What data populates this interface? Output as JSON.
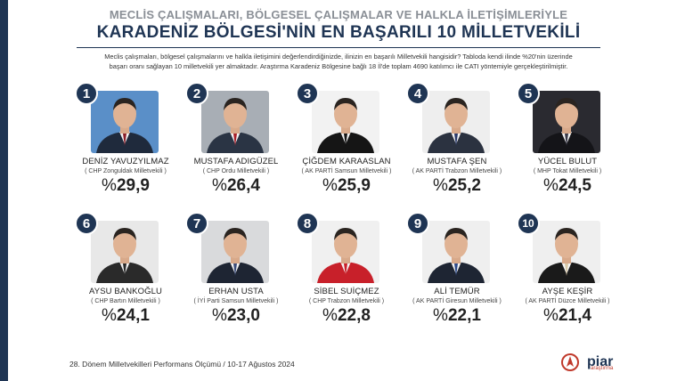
{
  "header": {
    "subtitle": "MECLİS ÇALIŞMALARI, BÖLGESEL ÇALIŞMALAR VE HALKLA İLETİŞİMLERİYLE",
    "title": "KARADENİZ BÖLGESİ'NİN EN BAŞARILI 10 MİLLETVEKİLİ",
    "description_line1": "Meclis çalışmaları, bölgesel çalışmalarını  ve halkla iletişimini değerlendirdiğinizde, ilinizin en başarılı Milletvekili hangisidir? Tabloda kendi ilinde %20'nin üzerinde",
    "description_line2": "başarı oranı sağlayan 10 milletvekili yer almaktadır. Araştırma Karadeniz Bölgesine bağlı 18 İl'de toplam 4690 katılımcı ile  CATI yöntemiyle gerçekleştirilmiştir."
  },
  "accent_color": "#1f3554",
  "percent_sign": "%",
  "deputies": [
    {
      "rank": "1",
      "name": "DENİZ YAVUZYILMAZ",
      "party": "( CHP Zonguldak Milletvekili )",
      "value": "29,9",
      "bg": "#5a8fc8",
      "suit": "#1f2a3c",
      "tie": "#8a1f2a"
    },
    {
      "rank": "2",
      "name": "MUSTAFA ADIGÜZEL",
      "party": "( CHP Ordu Milletvekili )",
      "value": "26,4",
      "bg": "#a8aeb5",
      "suit": "#2a3444",
      "tie": "#a8202a"
    },
    {
      "rank": "3",
      "name": "ÇİĞDEM KARAASLAN",
      "party": "( AK PARTİ Samsun Milletvekili )",
      "value": "25,9",
      "bg": "#f2f2f2",
      "suit": "#151515",
      "tie": "#151515"
    },
    {
      "rank": "4",
      "name": "MUSTAFA ŞEN",
      "party": "( AK PARTİ Trabzon Milletvekili )",
      "value": "25,2",
      "bg": "#eeeeee",
      "suit": "#2b3240",
      "tie": "#2a3a6a"
    },
    {
      "rank": "5",
      "name": "YÜCEL BULUT",
      "party": "( MHP Tokat Milletvekili )",
      "value": "24,5",
      "bg": "#2a2a30",
      "suit": "#141418",
      "tie": "#3a3a48"
    },
    {
      "rank": "6",
      "name": "AYSU BANKOĞLU",
      "party": "( CHP Bartın Milletvekili )",
      "value": "24,1",
      "bg": "#e8e8e8",
      "suit": "#2a2a2a",
      "tie": "#2a2a2a"
    },
    {
      "rank": "7",
      "name": "ERHAN USTA",
      "party": "( İYİ Parti Samsun Milletvekili )",
      "value": "23,0",
      "bg": "#d9dadc",
      "suit": "#1e2533",
      "tie": "#3c4d7a"
    },
    {
      "rank": "8",
      "name": "SİBEL SUİÇMEZ",
      "party": "( CHP Trabzon Milletvekili )",
      "value": "22,8",
      "bg": "#f0f0f0",
      "suit": "#c8202a",
      "tie": "#c8202a"
    },
    {
      "rank": "9",
      "name": "ALİ TEMÜR",
      "party": "( AK PARTİ Giresun Milletvekili )",
      "value": "22,1",
      "bg": "#efefef",
      "suit": "#1e2533",
      "tie": "#2d4a8a"
    },
    {
      "rank": "10",
      "name": "AYŞE KEŞİR",
      "party": "( AK PARTİ Düzce Milletvekili )",
      "value": "21,4",
      "bg": "#efefef",
      "suit": "#1a1a1a",
      "tie": "#d8c9a8"
    }
  ],
  "footer": {
    "text": "28. Dönem Milletvekilleri Performans Ölçümü / 10-17 Ağustos 2024",
    "logo_text": "piar",
    "logo_sub": "araştırma"
  }
}
